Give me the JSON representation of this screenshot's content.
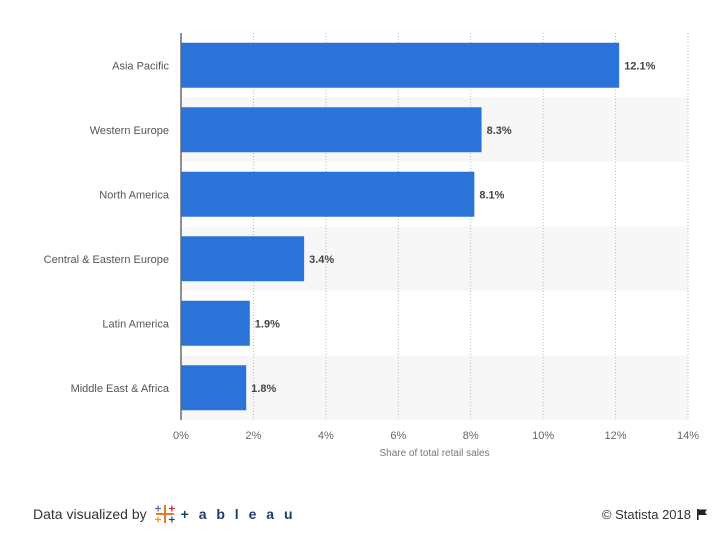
{
  "chart_data": {
    "type": "bar",
    "orientation": "horizontal",
    "categories": [
      "Asia Pacific",
      "Western Europe",
      "North America",
      "Central & Eastern Europe",
      "Latin America",
      "Middle East & Africa"
    ],
    "values": [
      12.1,
      8.3,
      8.1,
      3.4,
      1.9,
      1.8
    ],
    "value_labels": [
      "12.1%",
      "8.3%",
      "8.1%",
      "3.4%",
      "1.9%",
      "1.8%"
    ],
    "xlabel": "Share of total retail sales",
    "xlim": [
      0,
      14
    ],
    "xticks": [
      0,
      2,
      4,
      6,
      8,
      10,
      12,
      14
    ],
    "xtick_labels": [
      "0%",
      "2%",
      "4%",
      "6%",
      "8%",
      "10%",
      "12%",
      "14%"
    ],
    "grid": true,
    "bar_color": "#2c73d9"
  },
  "footer": {
    "credit_label": "Data visualized by",
    "tableau_word": "+ a b l e a u",
    "copyright": "© Statista 2018",
    "flag_icon": "flag-icon"
  }
}
